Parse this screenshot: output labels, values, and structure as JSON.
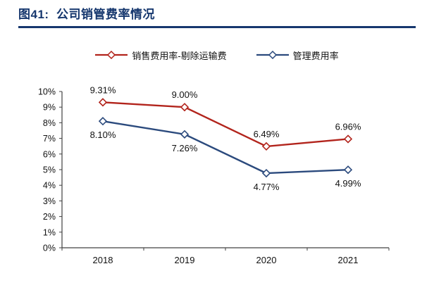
{
  "header": {
    "title": "图41:  公司销管费率情况"
  },
  "chart_data": {
    "type": "line",
    "title": "公司销管费率情况",
    "categories": [
      "2018",
      "2019",
      "2020",
      "2021"
    ],
    "series": [
      {
        "name": "销售费用率-剔除运输费",
        "color": "#B2241C",
        "marker": "diamond",
        "values": [
          9.31,
          9.0,
          6.49,
          6.96
        ],
        "labels": [
          "9.31%",
          "9.00%",
          "6.49%",
          "6.96%"
        ],
        "label_position": "above"
      },
      {
        "name": "管理费用率",
        "color": "#2B4A7D",
        "marker": "diamond",
        "values": [
          8.1,
          7.26,
          4.77,
          4.99
        ],
        "labels": [
          "8.10%",
          "7.26%",
          "4.77%",
          "4.99%"
        ],
        "label_position": "below"
      }
    ],
    "ylim": [
      0,
      10
    ],
    "ytick_step": 1,
    "ytick_labels": [
      "0%",
      "1%",
      "2%",
      "3%",
      "4%",
      "5%",
      "6%",
      "7%",
      "8%",
      "9%",
      "10%"
    ],
    "grid": false,
    "legend_position": "top",
    "data_labels": true,
    "xlabel": "",
    "ylabel": ""
  },
  "colors": {
    "title": "#16376E",
    "rule": "#16376E",
    "axis": "#404040"
  }
}
